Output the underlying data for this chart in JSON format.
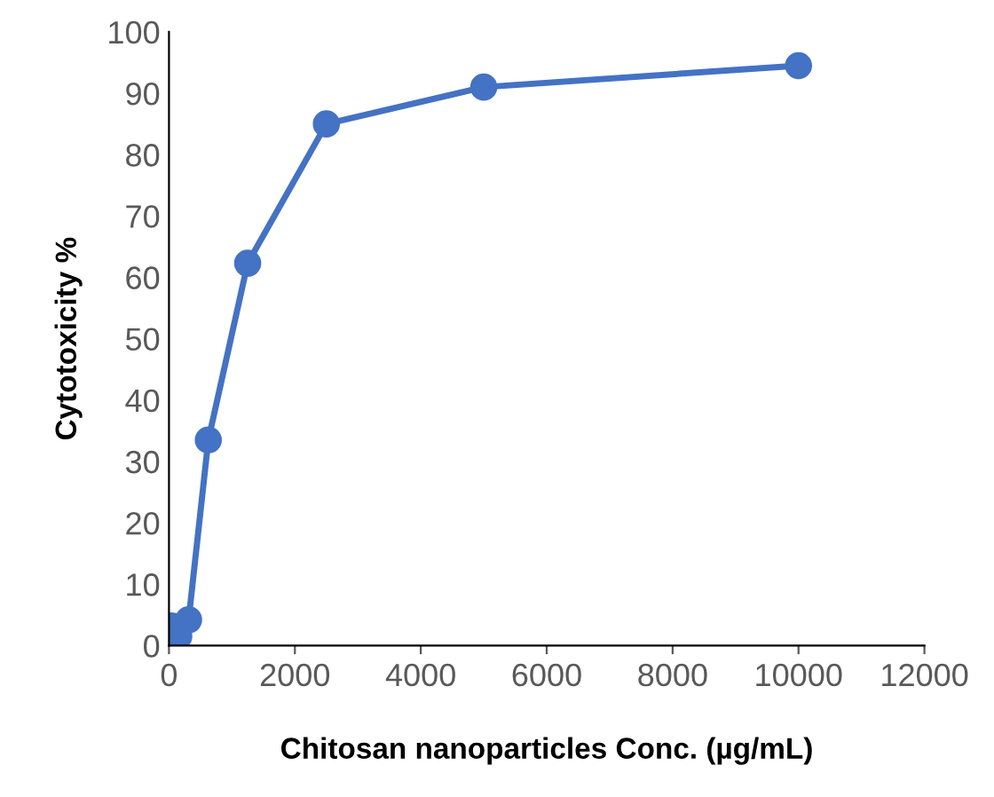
{
  "chart_data": {
    "type": "line",
    "xlabel": "Chitosan nanoparticles Conc. (µg/mL)",
    "ylabel": "Cytotoxicity %",
    "x": [
      39,
      78,
      156,
      312,
      625,
      1250,
      2500,
      5000,
      10000
    ],
    "series": [
      {
        "color": "#4472c4",
        "values": [
          3.2,
          2.5,
          1.5,
          4.2,
          33.5,
          62.3,
          85,
          91,
          94.5
        ]
      }
    ],
    "xlim": [
      0,
      12000
    ],
    "xticks": [
      0,
      2000,
      4000,
      6000,
      8000,
      10000,
      12000
    ],
    "ylim": [
      0,
      100
    ],
    "yticks": [
      0,
      10,
      20,
      30,
      40,
      50,
      60,
      70,
      80,
      90,
      100
    ],
    "grid": false,
    "legend": false,
    "marker": "circle",
    "line_style": "solid"
  }
}
